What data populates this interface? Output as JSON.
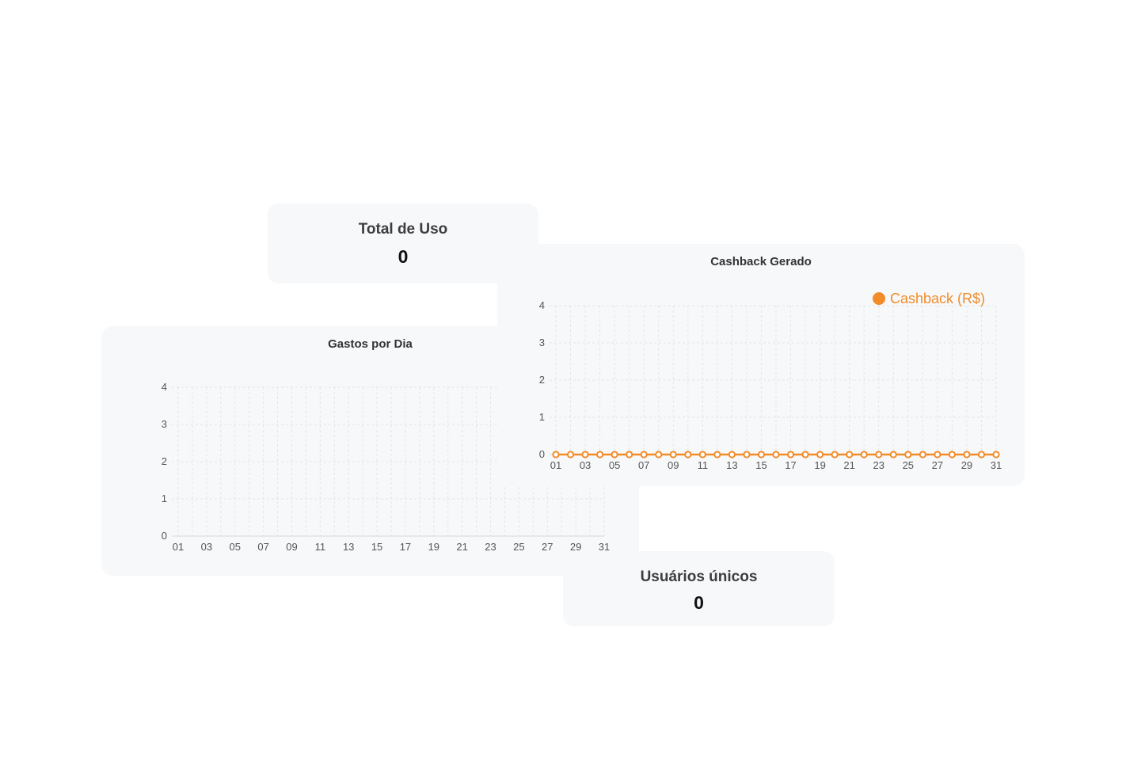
{
  "total_uso": {
    "title": "Total de Uso",
    "value": "0"
  },
  "usuarios_unicos": {
    "title": "Usuários únicos",
    "value": "0"
  },
  "colors": {
    "cashback": "#f28c28",
    "grid": "#e3e5ea",
    "tick": "#555555"
  },
  "chart_data": [
    {
      "type": "line",
      "title": "Gastos por Dia",
      "xlabel": "",
      "ylabel": "",
      "x": [
        "01",
        "02",
        "03",
        "04",
        "05",
        "06",
        "07",
        "08",
        "09",
        "10",
        "11",
        "12",
        "13",
        "14",
        "15",
        "16",
        "17",
        "18",
        "19",
        "20",
        "21",
        "22",
        "23",
        "24",
        "25",
        "26",
        "27",
        "28",
        "29",
        "30",
        "31"
      ],
      "x_tick_labels": [
        "01",
        "03",
        "05",
        "07",
        "09",
        "11",
        "13",
        "15",
        "17",
        "19",
        "21",
        "23",
        "25",
        "27",
        "29",
        "31"
      ],
      "y_ticks": [
        "0",
        "1",
        "2",
        "3",
        "4"
      ],
      "ylim": [
        0,
        4
      ],
      "grid": true,
      "series": []
    },
    {
      "type": "line",
      "title": "Cashback Gerado",
      "xlabel": "",
      "ylabel": "",
      "x": [
        "01",
        "02",
        "03",
        "04",
        "05",
        "06",
        "07",
        "08",
        "09",
        "10",
        "11",
        "12",
        "13",
        "14",
        "15",
        "16",
        "17",
        "18",
        "19",
        "20",
        "21",
        "22",
        "23",
        "24",
        "25",
        "26",
        "27",
        "28",
        "29",
        "30",
        "31"
      ],
      "x_tick_labels": [
        "01",
        "03",
        "05",
        "07",
        "09",
        "11",
        "13",
        "15",
        "17",
        "19",
        "21",
        "23",
        "25",
        "27",
        "29",
        "31"
      ],
      "y_ticks": [
        "0",
        "1",
        "2",
        "3",
        "4"
      ],
      "ylim": [
        0,
        4
      ],
      "grid": true,
      "legend": "top-right",
      "series": [
        {
          "name": "Cashback (R$)",
          "color": "#f28c28",
          "values": [
            0,
            0,
            0,
            0,
            0,
            0,
            0,
            0,
            0,
            0,
            0,
            0,
            0,
            0,
            0,
            0,
            0,
            0,
            0,
            0,
            0,
            0,
            0,
            0,
            0,
            0,
            0,
            0,
            0,
            0,
            0
          ]
        }
      ]
    }
  ]
}
